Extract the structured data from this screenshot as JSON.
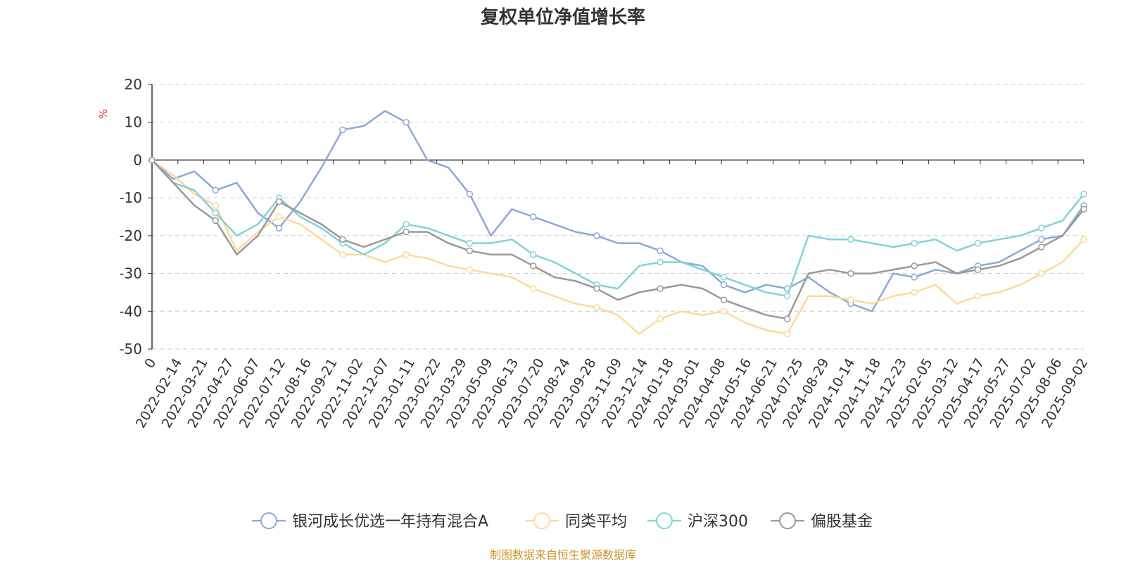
{
  "chart_data": {
    "type": "line",
    "title": "复权单位净值增长率",
    "ylabel": "%",
    "ylim": [
      -50,
      20
    ],
    "yticks": [
      20,
      10,
      0,
      -10,
      -20,
      -30,
      -40,
      -50
    ],
    "x_ticks": [
      "0",
      "2022-02-14",
      "2022-03-21",
      "2022-04-27",
      "2022-06-07",
      "2022-07-12",
      "2022-08-16",
      "2022-09-21",
      "2022-11-02",
      "2022-12-07",
      "2023-01-11",
      "2023-02-22",
      "2023-03-29",
      "2023-05-09",
      "2023-06-13",
      "2023-07-20",
      "2023-08-24",
      "2023-09-28",
      "2023-11-09",
      "2023-12-14",
      "2024-01-18",
      "2024-03-01",
      "2024-04-08",
      "2024-05-16",
      "2024-06-21",
      "2024-07-25",
      "2024-08-29",
      "2024-10-14",
      "2024-11-18",
      "2024-12-23",
      "2025-02-05",
      "2025-03-12",
      "2025-04-17",
      "2025-05-27",
      "2025-07-02",
      "2025-08-06",
      "2025-09-02"
    ],
    "grid": true,
    "legend_position": "bottom",
    "series": [
      {
        "name": "银河成长优选一年持有混合A",
        "color": "#8ba8d8",
        "values": [
          0,
          -5,
          -3,
          -8,
          -6,
          -14,
          -18,
          -11,
          -2,
          8,
          9,
          13,
          10,
          0,
          -2,
          -9,
          -20,
          -13,
          -15,
          -17,
          -19,
          -20,
          -22,
          -22,
          -24,
          -27,
          -28,
          -33,
          -35,
          -33,
          -34,
          -31,
          -35,
          -38,
          -40,
          -30,
          -31,
          -29,
          -30,
          -28,
          -27,
          -24,
          -21,
          -20,
          -12
        ]
      },
      {
        "name": "同类平均",
        "color": "#ffd89a",
        "values": [
          0,
          -4,
          -9,
          -12,
          -24,
          -19,
          -15,
          -17,
          -21,
          -25,
          -25,
          -27,
          -25,
          -26,
          -28,
          -29,
          -30,
          -31,
          -34,
          -36,
          -38,
          -39,
          -41,
          -46,
          -42,
          -40,
          -41,
          -40,
          -43,
          -45,
          -46,
          -36,
          -36,
          -37,
          -38,
          -36,
          -35,
          -33,
          -38,
          -36,
          -35,
          -33,
          -30,
          -27,
          -21
        ]
      },
      {
        "name": "沪深300",
        "color": "#80d3d8",
        "values": [
          0,
          -6,
          -8,
          -14,
          -20,
          -17,
          -10,
          -15,
          -18,
          -22,
          -25,
          -22,
          -17,
          -18,
          -20,
          -22,
          -22,
          -21,
          -25,
          -27,
          -30,
          -33,
          -34,
          -28,
          -27,
          -27,
          -29,
          -31,
          -33,
          -35,
          -36,
          -20,
          -21,
          -21,
          -22,
          -23,
          -22,
          -21,
          -24,
          -22,
          -21,
          -20,
          -18,
          -16,
          -9
        ]
      },
      {
        "name": "偏股基金",
        "color": "#999999",
        "values": [
          0,
          -6,
          -12,
          -16,
          -25,
          -20,
          -11,
          -14,
          -17,
          -21,
          -23,
          -21,
          -19,
          -19,
          -22,
          -24,
          -25,
          -25,
          -28,
          -31,
          -32,
          -34,
          -37,
          -35,
          -34,
          -33,
          -34,
          -37,
          -39,
          -41,
          -42,
          -30,
          -29,
          -30,
          -30,
          -29,
          -28,
          -27,
          -30,
          -29,
          -28,
          -26,
          -23,
          -20,
          -13
        ]
      }
    ],
    "source_note": "制图数据来自恒生聚源数据库"
  }
}
